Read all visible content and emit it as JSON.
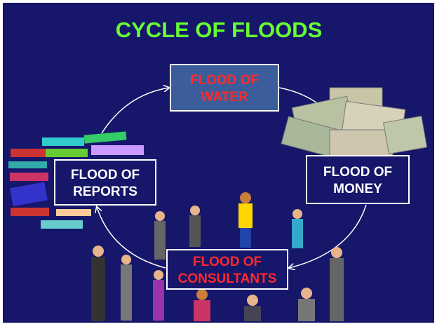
{
  "title": "CYCLE OF FLOODS",
  "nodes": [
    {
      "lines": [
        "FLOOD OF",
        "WATER"
      ]
    },
    {
      "lines": [
        "FLOOD OF",
        "MONEY"
      ]
    },
    {
      "lines": [
        "FLOOD OF",
        "CONSULTANTS"
      ]
    },
    {
      "lines": [
        "FLOOD OF",
        "REPORTS"
      ]
    }
  ]
}
